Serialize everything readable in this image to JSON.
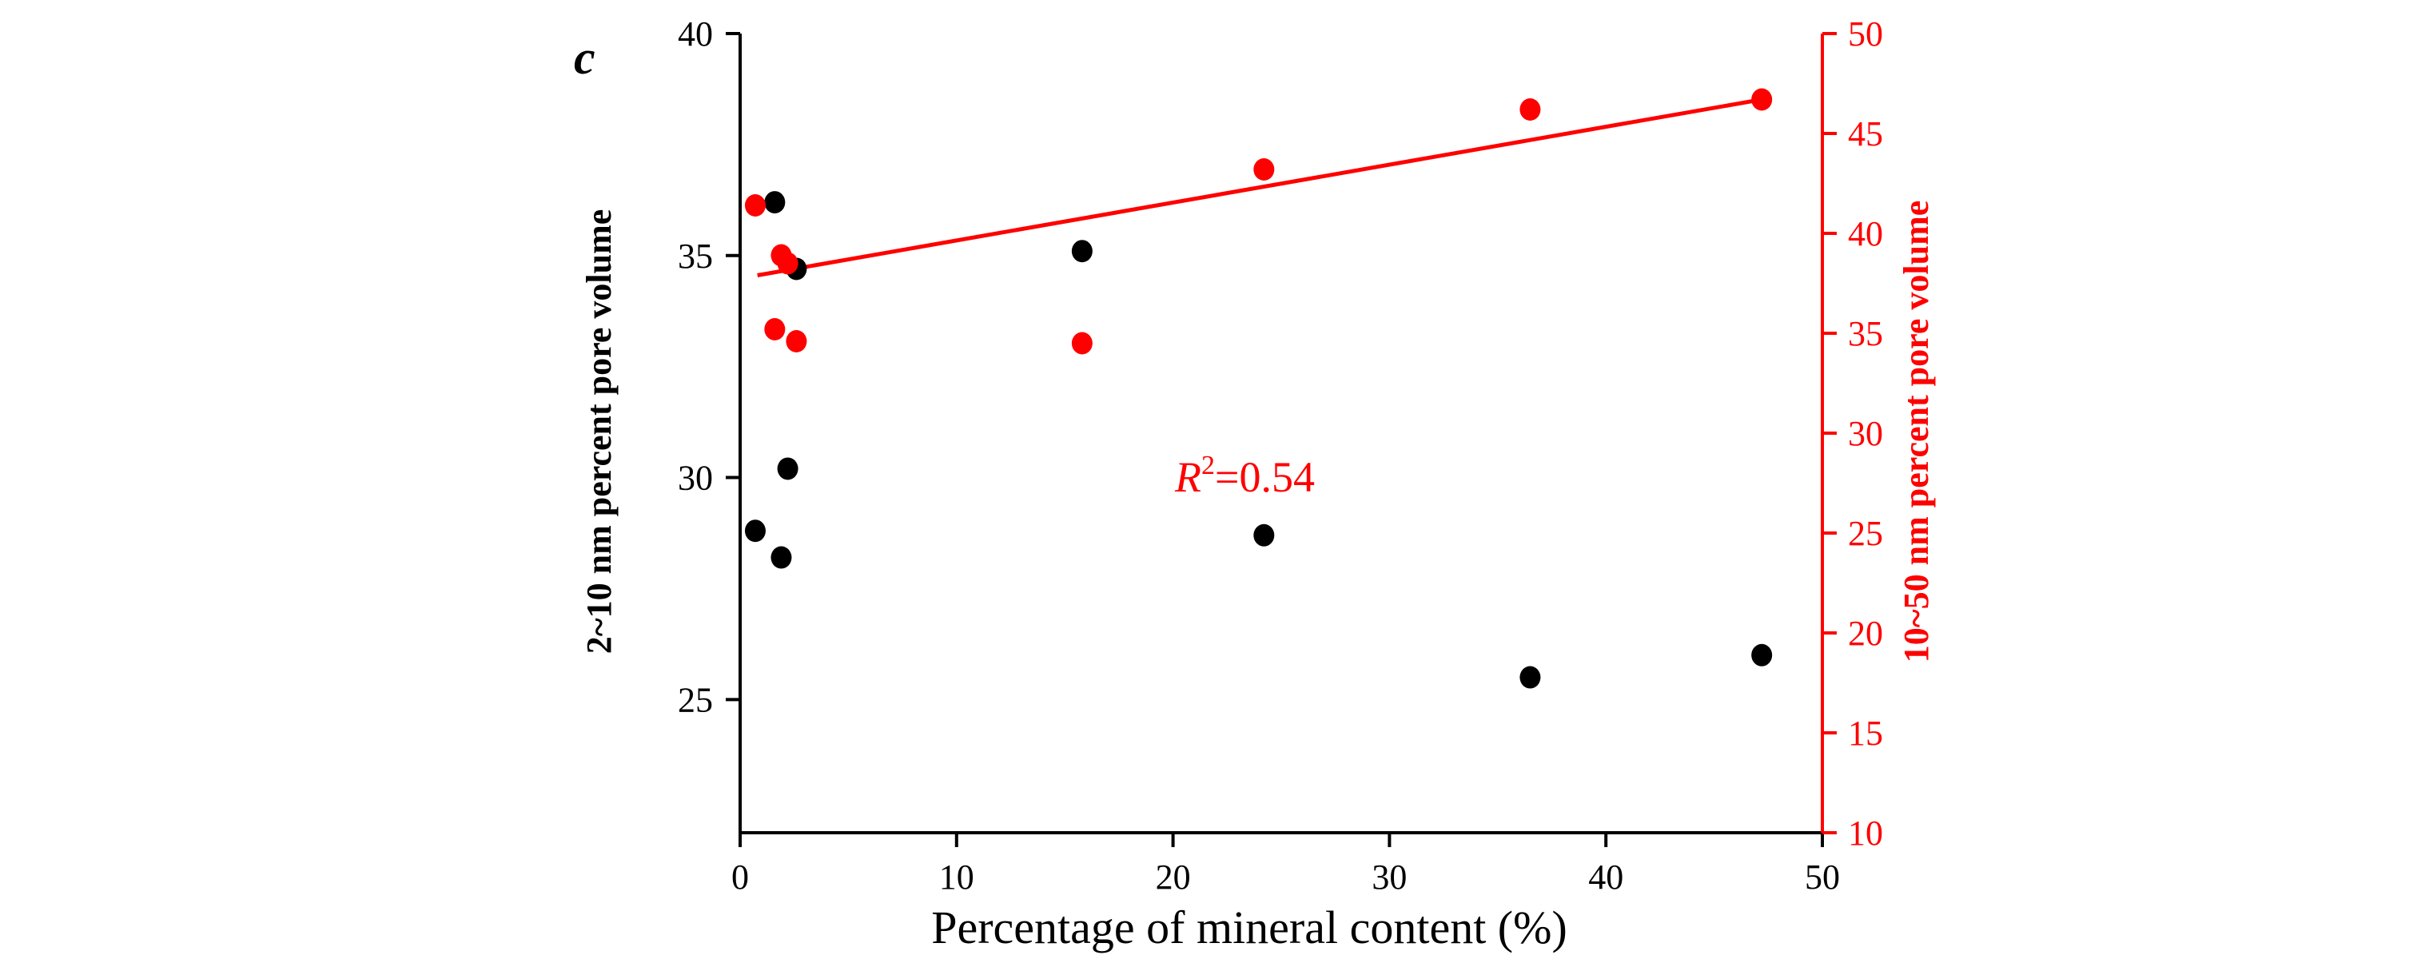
{
  "chart_data": {
    "type": "scatter",
    "panel_label": "c",
    "xlabel": "Percentage of mineral  content (%)",
    "xlim": [
      0,
      50
    ],
    "xticks": [
      "0",
      "10",
      "20",
      "30",
      "40",
      "50"
    ],
    "left_axis": {
      "label": "2~10 nm percent pore volume",
      "ylim": [
        22,
        40
      ],
      "ticks": [
        "25",
        "30",
        "35",
        "40"
      ],
      "color": "#000000"
    },
    "right_axis": {
      "label": "10~50 nm percent pore volume",
      "ylim": [
        10,
        50
      ],
      "ticks": [
        "10",
        "15",
        "20",
        "25",
        "30",
        "35",
        "40",
        "45",
        "50"
      ],
      "color": "#ff0000"
    },
    "series": [
      {
        "name": "2~10 nm percent pore volume",
        "axis": "left",
        "color": "#000000",
        "x": [
          0.7,
          1.6,
          1.9,
          2.2,
          2.6,
          15.8,
          24.2,
          36.5,
          47.2
        ],
        "y": [
          28.8,
          36.2,
          28.2,
          30.2,
          34.7,
          35.1,
          28.7,
          25.5,
          26.0
        ]
      },
      {
        "name": "10~50 nm percent pore volume",
        "axis": "right",
        "color": "#ff0000",
        "x": [
          0.7,
          1.6,
          1.9,
          2.2,
          2.6,
          15.8,
          24.2,
          36.5,
          47.2
        ],
        "y": [
          41.4,
          35.2,
          38.9,
          38.5,
          34.6,
          34.5,
          43.2,
          46.2,
          46.7
        ]
      }
    ],
    "fit_line": {
      "axis": "right",
      "color": "#ff0000",
      "x": [
        0.8,
        47.2
      ],
      "y": [
        37.9,
        46.7
      ]
    },
    "annotation": {
      "symbol": "R",
      "superscript": "2",
      "value": "=0.54",
      "color": "#ff0000"
    }
  }
}
